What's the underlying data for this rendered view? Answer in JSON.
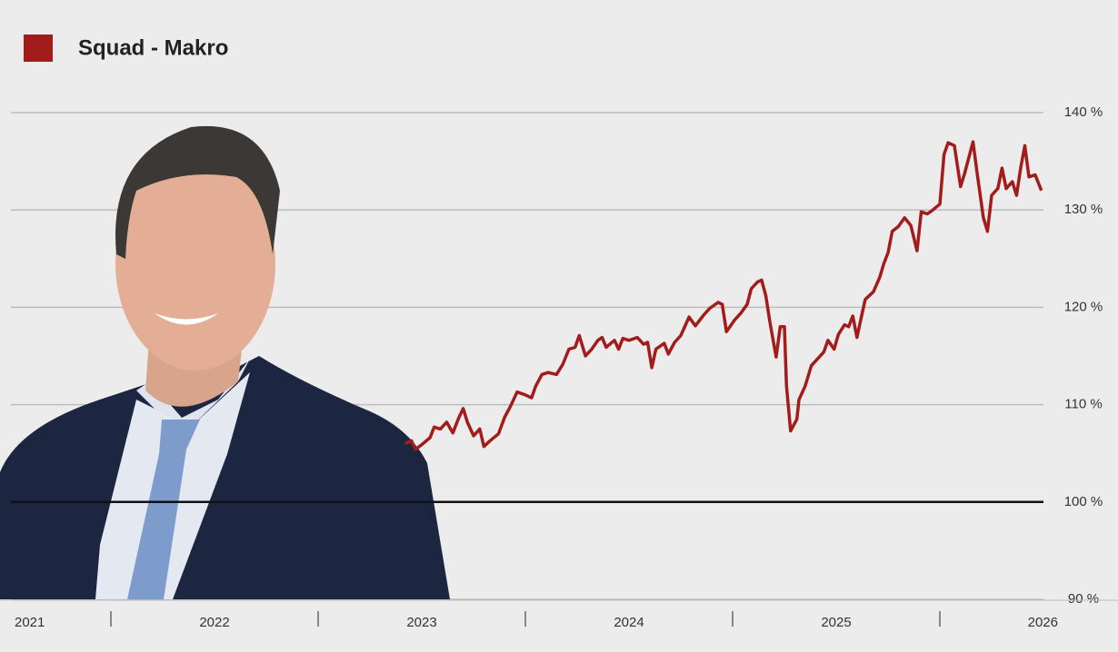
{
  "chart_data": {
    "type": "line",
    "series": [
      {
        "name": "Squad  - Makro",
        "color": "#a31c1c",
        "x": [
          2022.92,
          2022.95,
          2022.97,
          2023.0,
          2023.04,
          2023.06,
          2023.09,
          2023.12,
          2023.15,
          2023.18,
          2023.2,
          2023.22,
          2023.25,
          2023.28,
          2023.3,
          2023.33,
          2023.37,
          2023.4,
          2023.43,
          2023.46,
          2023.5,
          2023.53,
          2023.55,
          2023.58,
          2023.61,
          2023.65,
          2023.68,
          2023.71,
          2023.74,
          2023.76,
          2023.79,
          2023.82,
          2023.85,
          2023.87,
          2023.89,
          2023.93,
          2023.95,
          2023.97,
          2024.0,
          2024.04,
          2024.07,
          2024.09,
          2024.11,
          2024.13,
          2024.17,
          2024.19,
          2024.22,
          2024.25,
          2024.29,
          2024.32,
          2024.36,
          2024.39,
          2024.43,
          2024.45,
          2024.47,
          2024.51,
          2024.54,
          2024.57,
          2024.59,
          2024.62,
          2024.64,
          2024.66,
          2024.68,
          2024.71,
          2024.73,
          2024.75,
          2024.76,
          2024.78,
          2024.81,
          2024.82,
          2024.85,
          2024.88,
          2024.91,
          2024.94,
          2024.96,
          2024.99,
          2025.01,
          2025.04,
          2025.06,
          2025.08,
          2025.1,
          2025.12,
          2025.14,
          2025.18,
          2025.21,
          2025.23,
          2025.25,
          2025.27,
          2025.3,
          2025.33,
          2025.36,
          2025.39,
          2025.41,
          2025.44,
          2025.46,
          2025.5,
          2025.52,
          2025.54,
          2025.57,
          2025.6,
          2025.62,
          2025.66,
          2025.68,
          2025.71,
          2025.73,
          2025.75,
          2025.78,
          2025.8,
          2025.82,
          2025.85,
          2025.87,
          2025.89,
          2025.91,
          2025.93,
          2025.96,
          2025.99
        ],
        "values": [
          106.0,
          106.3,
          105.4,
          105.9,
          106.6,
          107.7,
          107.5,
          108.2,
          107.1,
          108.7,
          109.6,
          108.2,
          106.8,
          107.5,
          105.7,
          106.3,
          107.0,
          108.7,
          109.9,
          111.3,
          111.0,
          110.7,
          111.9,
          113.1,
          113.3,
          113.1,
          114.1,
          115.7,
          115.9,
          117.1,
          115.0,
          115.7,
          116.6,
          116.9,
          115.9,
          116.6,
          115.7,
          116.8,
          116.6,
          116.9,
          116.2,
          116.4,
          113.8,
          115.7,
          116.3,
          115.2,
          116.4,
          117.1,
          119.0,
          118.1,
          119.2,
          119.9,
          120.5,
          120.3,
          117.5,
          118.7,
          119.4,
          120.3,
          121.9,
          122.6,
          122.8,
          121.2,
          118.5,
          114.9,
          118.0,
          118.0,
          111.9,
          107.3,
          108.5,
          110.5,
          111.9,
          114.0,
          114.7,
          115.4,
          116.6,
          115.7,
          117.2,
          118.2,
          118.0,
          119.1,
          116.9,
          118.9,
          120.8,
          121.6,
          123.1,
          124.5,
          125.6,
          127.8,
          128.3,
          129.2,
          128.4,
          125.8,
          129.8,
          129.6,
          129.9,
          130.6,
          135.7,
          136.9,
          136.6,
          132.4,
          133.8,
          137.0,
          133.8,
          129.2,
          127.8,
          131.5,
          132.2,
          134.3,
          132.2,
          132.9,
          131.5,
          134.3,
          136.6,
          133.4,
          133.6,
          132.0
        ]
      }
    ],
    "xlim": [
      2021,
      2026
    ],
    "xticks": [
      2021,
      2022,
      2023,
      2024,
      2025,
      2026
    ],
    "x_separators": [
      2021.5,
      2022.5,
      2023.5,
      2024.5,
      2025.5
    ],
    "ylim": [
      90,
      140
    ],
    "yticks": [
      {
        "value": 90,
        "label": "90 %"
      },
      {
        "value": 100,
        "label": "100 %"
      },
      {
        "value": 110,
        "label": "110 %"
      },
      {
        "value": 120,
        "label": "120 %"
      },
      {
        "value": 130,
        "label": "130 %"
      },
      {
        "value": 140,
        "label": "140 %"
      }
    ],
    "baseline": 100,
    "grid": true
  }
}
